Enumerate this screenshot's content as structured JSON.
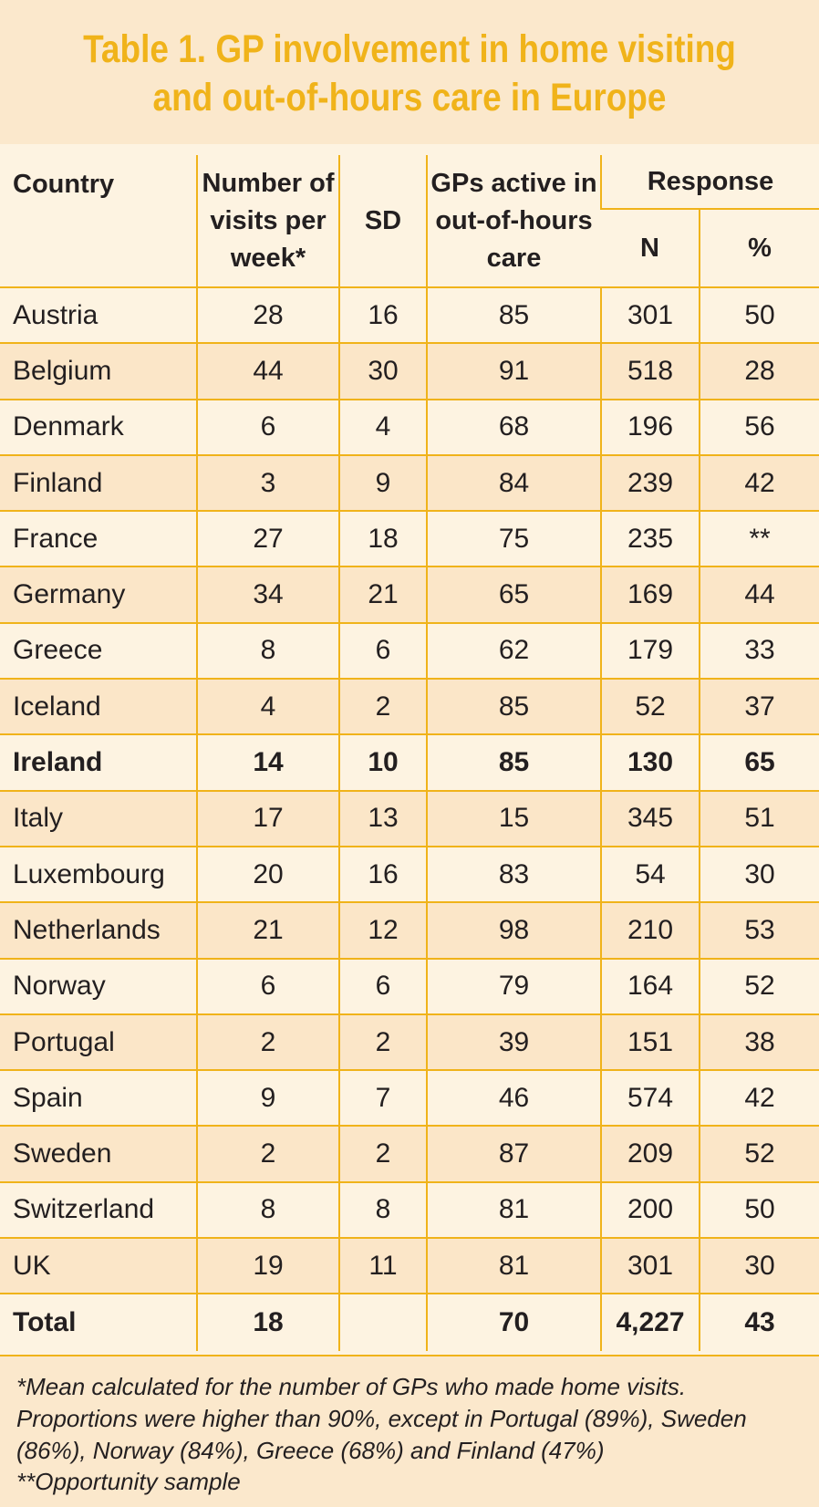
{
  "title": {
    "line1": "Table 1. GP involvement in home visiting",
    "line2": "and out-of-hours care in Europe"
  },
  "headers": {
    "country": "Country",
    "visits_line1": "Number of",
    "visits_line2": "visits per",
    "visits_line3": "week*",
    "sd": "SD",
    "ooh_line1": "GPs active in",
    "ooh_line2": "out-of-hours",
    "ooh_line3": "care",
    "response": "Response",
    "n": "N",
    "pct": "%"
  },
  "rows": [
    {
      "country": "Austria",
      "visits": "28",
      "sd": "16",
      "ooh": "85",
      "n": "301",
      "pct": "50"
    },
    {
      "country": "Belgium",
      "visits": "44",
      "sd": "30",
      "ooh": "91",
      "n": "518",
      "pct": "28"
    },
    {
      "country": "Denmark",
      "visits": "6",
      "sd": "4",
      "ooh": "68",
      "n": "196",
      "pct": "56"
    },
    {
      "country": "Finland",
      "visits": "3",
      "sd": "9",
      "ooh": "84",
      "n": "239",
      "pct": "42"
    },
    {
      "country": "France",
      "visits": "27",
      "sd": "18",
      "ooh": "75",
      "n": "235",
      "pct": "**"
    },
    {
      "country": "Germany",
      "visits": "34",
      "sd": "21",
      "ooh": "65",
      "n": "169",
      "pct": "44"
    },
    {
      "country": "Greece",
      "visits": "8",
      "sd": "6",
      "ooh": "62",
      "n": "179",
      "pct": "33"
    },
    {
      "country": "Iceland",
      "visits": "4",
      "sd": "2",
      "ooh": "85",
      "n": "52",
      "pct": "37"
    },
    {
      "country": "Ireland",
      "visits": "14",
      "sd": "10",
      "ooh": "85",
      "n": "130",
      "pct": "65"
    },
    {
      "country": "Italy",
      "visits": "17",
      "sd": "13",
      "ooh": "15",
      "n": "345",
      "pct": "51"
    },
    {
      "country": "Luxembourg",
      "visits": "20",
      "sd": "16",
      "ooh": "83",
      "n": "54",
      "pct": "30"
    },
    {
      "country": "Netherlands",
      "visits": "21",
      "sd": "12",
      "ooh": "98",
      "n": "210",
      "pct": "53"
    },
    {
      "country": "Norway",
      "visits": "6",
      "sd": "6",
      "ooh": "79",
      "n": "164",
      "pct": "52"
    },
    {
      "country": "Portugal",
      "visits": "2",
      "sd": "2",
      "ooh": "39",
      "n": "151",
      "pct": "38"
    },
    {
      "country": "Spain",
      "visits": "9",
      "sd": "7",
      "ooh": "46",
      "n": "574",
      "pct": "42"
    },
    {
      "country": "Sweden",
      "visits": "2",
      "sd": "2",
      "ooh": "87",
      "n": "209",
      "pct": "52"
    },
    {
      "country": "Switzerland",
      "visits": "8",
      "sd": "8",
      "ooh": "81",
      "n": "200",
      "pct": "50"
    },
    {
      "country": "UK",
      "visits": "19",
      "sd": "11",
      "ooh": "81",
      "n": "301",
      "pct": "30"
    }
  ],
  "total": {
    "label": "Total",
    "visits": "18",
    "sd": "",
    "ooh": "70",
    "n": "4,227",
    "pct": "43"
  },
  "footnotes": {
    "note1": "*Mean calculated for the number of GPs who made home visits. Proportions were higher than 90%, except in Portugal (89%), Sweden (86%), Norway (84%), Greece (68%) and Finland (47%)",
    "note2": "**Opportunity sample"
  },
  "colors": {
    "accent": "#f0b31a",
    "band": "#fbe8cc",
    "row_light": "#fdf3e1",
    "row_dark": "#fbe6c8",
    "text": "#231f20"
  }
}
